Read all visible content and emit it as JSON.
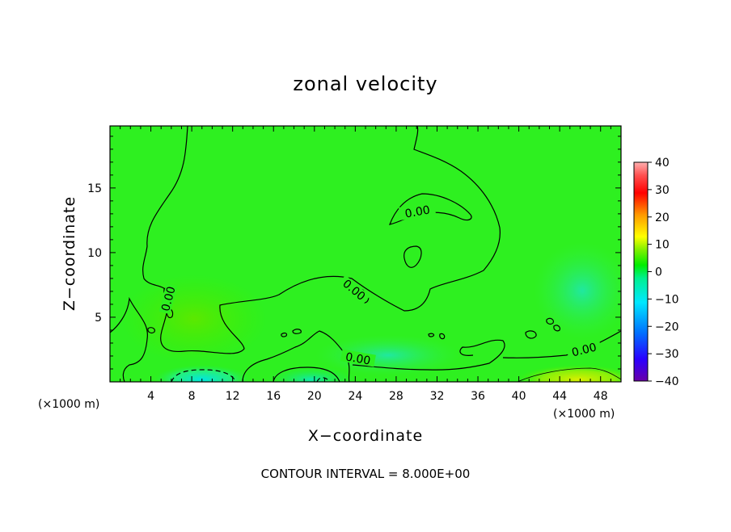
{
  "chart_data": {
    "type": "heatmap",
    "title": "zonal velocity",
    "xlabel": "X−coordinate",
    "ylabel": "Z−coordinate",
    "x_unit_note": "(×1000 m)",
    "x_unit_note_right": "(×1000 m)",
    "xlim": [
      0,
      50
    ],
    "ylim": [
      0,
      19.8
    ],
    "x_ticks": [
      4,
      8,
      12,
      16,
      20,
      24,
      28,
      32,
      36,
      40,
      44,
      48
    ],
    "y_ticks": [
      5,
      10,
      15
    ],
    "colorbar": {
      "range": [
        -40,
        40
      ],
      "ticks": [
        40,
        30,
        20,
        10,
        0,
        -10,
        -20,
        -30,
        -40
      ],
      "tick_labels": [
        "40",
        "30",
        "20",
        "10",
        "0",
        "−10",
        "−20",
        "−30",
        "−40"
      ]
    },
    "contour_labels": [
      "0.00",
      "0.00",
      "0.00",
      "0.00",
      "0.00"
    ],
    "contour_interval_note": "CONTOUR INTERVAL = 8.000E+00",
    "field_features": [
      {
        "kind": "negative_min",
        "x": 8.5,
        "z": 0.3,
        "value": -10
      },
      {
        "kind": "negative_min",
        "x": 21,
        "z": 0.2,
        "value": -6
      },
      {
        "kind": "positive_max",
        "x": 46,
        "z": 0.3,
        "value": 10
      },
      {
        "kind": "positive_max",
        "x": 8,
        "z": 5.5,
        "value": 4
      }
    ]
  }
}
